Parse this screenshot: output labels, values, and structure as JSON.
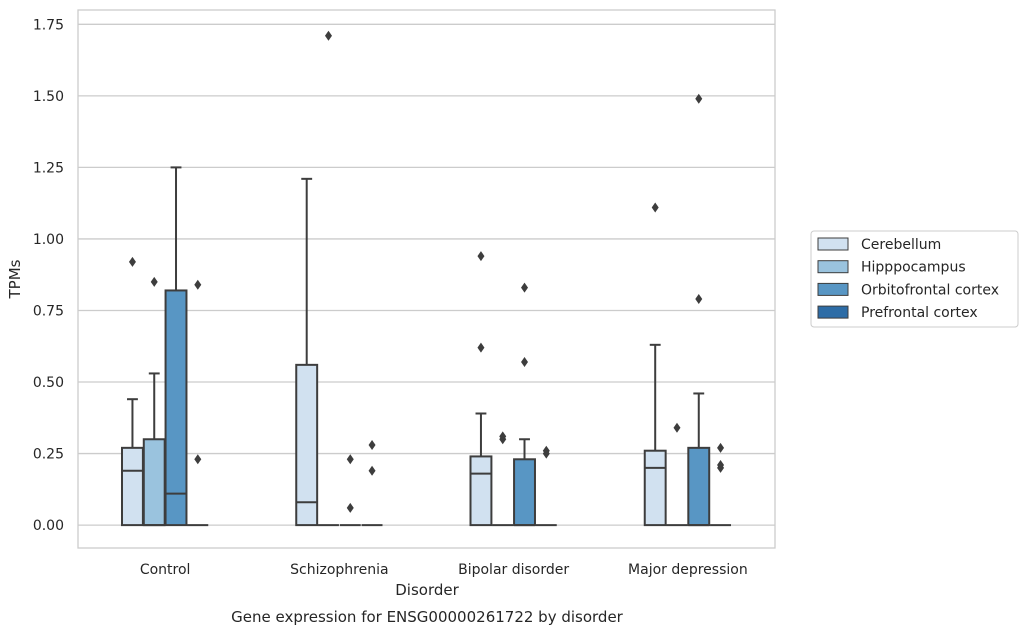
{
  "chart_data": {
    "type": "boxplot",
    "caption": "Gene expression for ENSG00000261722 by disorder",
    "xlabel": "Disorder",
    "ylabel": "TPMs",
    "ylim": [
      -0.08,
      1.8
    ],
    "yticks": [
      0.0,
      0.25,
      0.5,
      0.75,
      1.0,
      1.25,
      1.5,
      1.75
    ],
    "ytick_labels": [
      "0.00",
      "0.25",
      "0.50",
      "0.75",
      "1.00",
      "1.25",
      "1.50",
      "1.75"
    ],
    "grid": "horizontal",
    "legend_position": "right",
    "categories": [
      "Control",
      "Schizophrenia",
      "Bipolar disorder",
      "Major depression"
    ],
    "series": [
      {
        "name": "Cerebellum",
        "color": "#d1e1f0",
        "boxes": [
          {
            "q1": 0.0,
            "median": 0.19,
            "q3": 0.27,
            "whisker_low": 0.0,
            "whisker_high": 0.44,
            "outliers": [
              0.92
            ]
          },
          {
            "q1": 0.0,
            "median": 0.08,
            "q3": 0.56,
            "whisker_low": 0.0,
            "whisker_high": 1.21,
            "outliers": []
          },
          {
            "q1": 0.0,
            "median": 0.18,
            "q3": 0.24,
            "whisker_low": 0.0,
            "whisker_high": 0.39,
            "outliers": [
              0.62,
              0.94
            ]
          },
          {
            "q1": 0.0,
            "median": 0.2,
            "q3": 0.26,
            "whisker_low": 0.0,
            "whisker_high": 0.63,
            "outliers": [
              1.11
            ]
          }
        ]
      },
      {
        "name": "Hipppocampus",
        "color": "#9ac3de",
        "boxes": [
          {
            "q1": 0.0,
            "median": 0.0,
            "q3": 0.3,
            "whisker_low": 0.0,
            "whisker_high": 0.53,
            "outliers": [
              0.85
            ]
          },
          {
            "q1": 0.0,
            "median": 0.0,
            "q3": 0.0,
            "whisker_low": 0.0,
            "whisker_high": 0.0,
            "outliers": [
              1.71
            ]
          },
          {
            "q1": 0.0,
            "median": 0.0,
            "q3": 0.0,
            "whisker_low": 0.0,
            "whisker_high": 0.0,
            "outliers": [
              0.3,
              0.31
            ]
          },
          {
            "q1": 0.0,
            "median": 0.0,
            "q3": 0.0,
            "whisker_low": 0.0,
            "whisker_high": 0.0,
            "outliers": [
              0.34
            ]
          }
        ]
      },
      {
        "name": "Orbitofrontal cortex",
        "color": "#5896c4",
        "boxes": [
          {
            "q1": 0.0,
            "median": 0.11,
            "q3": 0.82,
            "whisker_low": 0.0,
            "whisker_high": 1.25,
            "outliers": []
          },
          {
            "q1": 0.0,
            "median": 0.0,
            "q3": 0.0,
            "whisker_low": 0.0,
            "whisker_high": 0.0,
            "outliers": [
              0.06,
              0.23
            ]
          },
          {
            "q1": 0.0,
            "median": 0.0,
            "q3": 0.23,
            "whisker_low": 0.0,
            "whisker_high": 0.3,
            "outliers": [
              0.57,
              0.83
            ]
          },
          {
            "q1": 0.0,
            "median": 0.0,
            "q3": 0.27,
            "whisker_low": 0.0,
            "whisker_high": 0.46,
            "outliers": [
              0.79,
              1.49
            ]
          }
        ]
      },
      {
        "name": "Prefrontal cortex",
        "color": "#2d6ca6",
        "boxes": [
          {
            "q1": 0.0,
            "median": 0.0,
            "q3": 0.0,
            "whisker_low": 0.0,
            "whisker_high": 0.0,
            "outliers": [
              0.23,
              0.84
            ]
          },
          {
            "q1": 0.0,
            "median": 0.0,
            "q3": 0.0,
            "whisker_low": 0.0,
            "whisker_high": 0.0,
            "outliers": [
              0.19,
              0.28
            ]
          },
          {
            "q1": 0.0,
            "median": 0.0,
            "q3": 0.0,
            "whisker_low": 0.0,
            "whisker_high": 0.0,
            "outliers": [
              0.25,
              0.26
            ]
          },
          {
            "q1": 0.0,
            "median": 0.0,
            "q3": 0.0,
            "whisker_low": 0.0,
            "whisker_high": 0.0,
            "outliers": [
              0.2,
              0.21,
              0.27
            ]
          }
        ]
      }
    ]
  }
}
